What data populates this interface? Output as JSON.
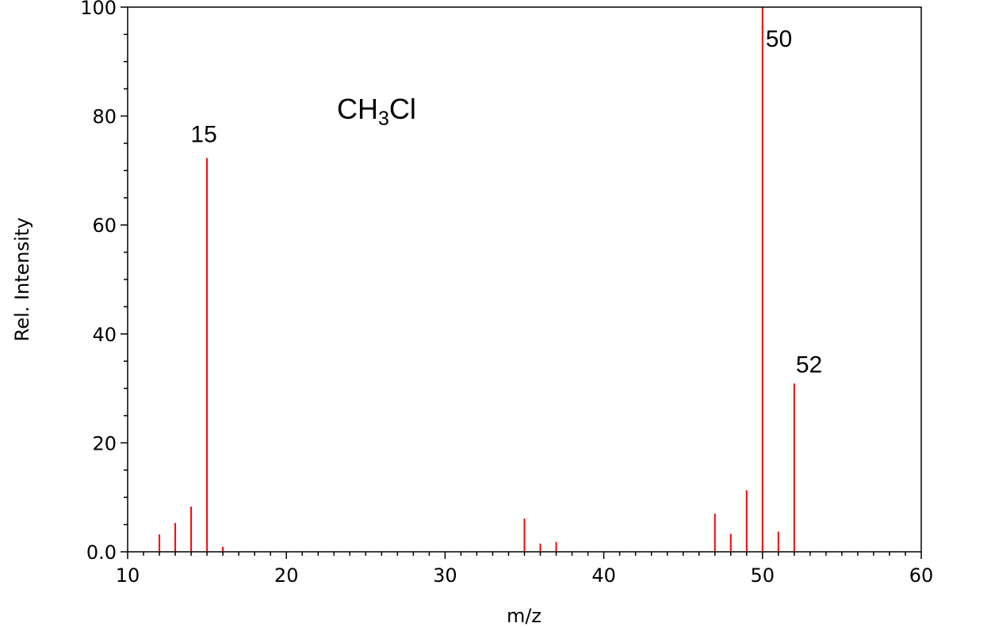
{
  "chart_data": {
    "type": "bar",
    "subtype": "mass-spectrum-stick",
    "annotation": {
      "base": "CH",
      "sub": "3",
      "rest": "Cl"
    },
    "xlabel": "m/z",
    "ylabel": "Rel. Intensity",
    "xlim": [
      10,
      60
    ],
    "ylim": [
      0,
      100
    ],
    "xticks": [
      10,
      20,
      30,
      40,
      50,
      60
    ],
    "xtick_labels": [
      "10",
      "20",
      "30",
      "40",
      "50",
      "60"
    ],
    "yticks": [
      0,
      20,
      40,
      60,
      80,
      100
    ],
    "ytick_labels": [
      "0.0",
      "20",
      "40",
      "60",
      "80",
      "100"
    ],
    "grid": false,
    "legend": "none",
    "bar_color": "#ff0000",
    "axis_color": "#000000",
    "peaks": [
      {
        "mz": 12,
        "intensity": 3.2
      },
      {
        "mz": 13,
        "intensity": 5.3
      },
      {
        "mz": 14,
        "intensity": 8.3
      },
      {
        "mz": 15,
        "intensity": 72.3
      },
      {
        "mz": 16,
        "intensity": 0.9
      },
      {
        "mz": 35,
        "intensity": 6.1
      },
      {
        "mz": 36,
        "intensity": 1.5
      },
      {
        "mz": 37,
        "intensity": 1.8
      },
      {
        "mz": 47,
        "intensity": 7.0
      },
      {
        "mz": 48,
        "intensity": 3.3
      },
      {
        "mz": 49,
        "intensity": 11.3
      },
      {
        "mz": 50,
        "intensity": 100
      },
      {
        "mz": 51,
        "intensity": 3.7
      },
      {
        "mz": 52,
        "intensity": 30.9
      }
    ],
    "peak_labels": [
      {
        "mz": 15,
        "text": "15"
      },
      {
        "mz": 50,
        "text": "50"
      },
      {
        "mz": 52,
        "text": "52"
      }
    ]
  }
}
